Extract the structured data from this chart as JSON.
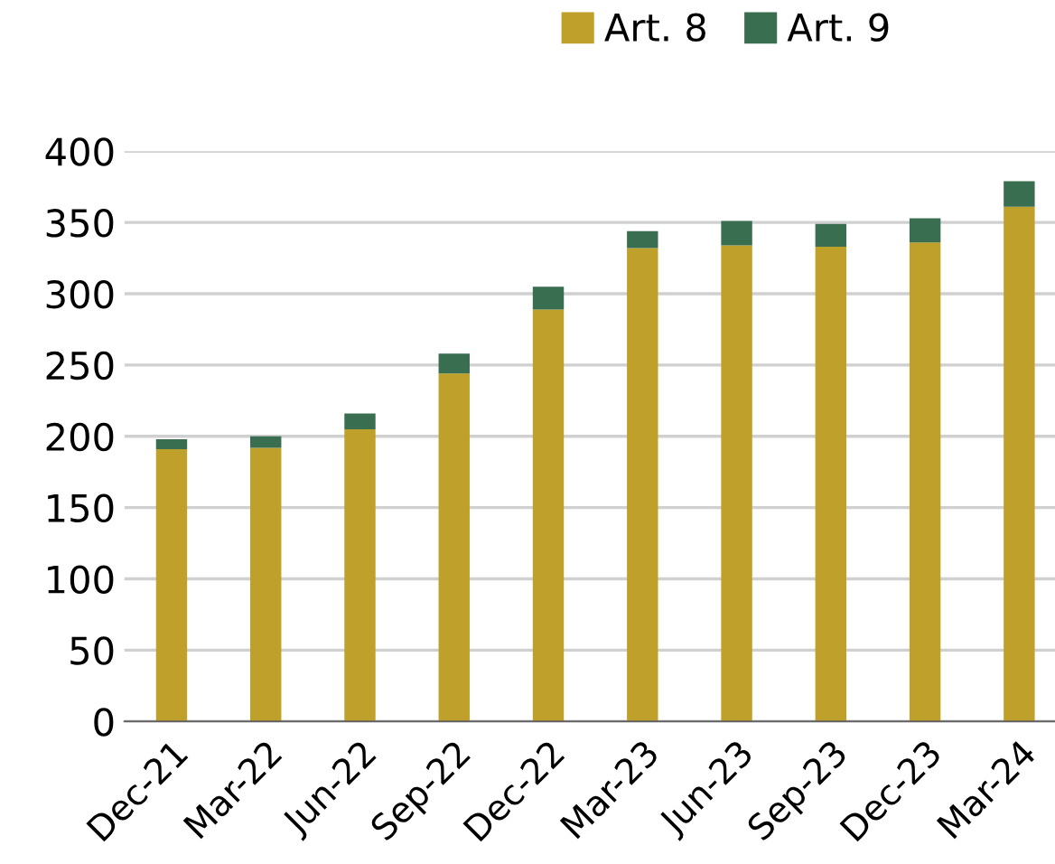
{
  "chart_data": {
    "type": "bar",
    "stacked": true,
    "categories": [
      "Dec-21",
      "Mar-22",
      "Jun-22",
      "Sep-22",
      "Dec-22",
      "Mar-23",
      "Jun-23",
      "Sep-23",
      "Dec-23",
      "Mar-24"
    ],
    "series": [
      {
        "name": "Art. 8",
        "color": "#bfa02a",
        "values": [
          191,
          192,
          205,
          244,
          289,
          332,
          334,
          333,
          336,
          361
        ]
      },
      {
        "name": "Art. 9",
        "color": "#3a6e50",
        "values": [
          7,
          8,
          11,
          14,
          16,
          12,
          17,
          16,
          17,
          18
        ]
      }
    ],
    "ylim": [
      0,
      400
    ],
    "yticks": [
      0,
      50,
      100,
      150,
      200,
      250,
      300,
      350,
      400
    ],
    "grid": "y",
    "legend": "top right"
  }
}
